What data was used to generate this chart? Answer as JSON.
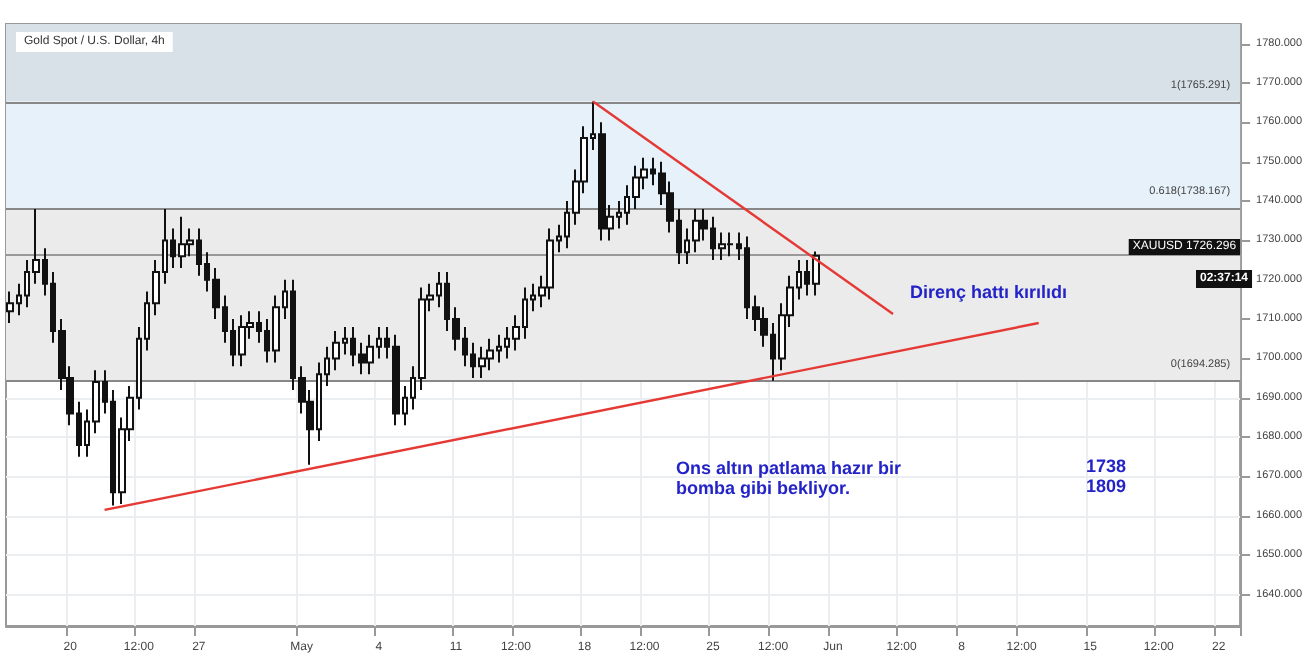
{
  "chart_data": {
    "type": "candlestick",
    "title": "Gold Spot / U.S. Dollar, 4h",
    "color": "#111111",
    "categories": [
      null,
      null,
      null,
      null,
      null,
      null,
      null,
      "20",
      null,
      null,
      null,
      null,
      null,
      null,
      null,
      "12:00",
      null,
      null,
      null,
      null,
      null,
      null,
      "27",
      null,
      null,
      null,
      null,
      null,
      null,
      null,
      null,
      null,
      null,
      null,
      "May",
      null,
      null,
      null,
      null,
      null,
      null,
      null,
      null,
      "4",
      null,
      null,
      null,
      null,
      null,
      null,
      null,
      null,
      "11",
      null,
      null,
      null,
      null,
      null,
      null,
      "12:00",
      null,
      null,
      null,
      null,
      null,
      null,
      null,
      "18",
      null,
      null,
      null,
      null,
      null,
      null,
      "12:00",
      null,
      null,
      null,
      null,
      null,
      null,
      null,
      "25",
      null,
      null,
      null,
      null,
      null,
      null,
      "12:00",
      null,
      null,
      null,
      null,
      null,
      null,
      "Jun",
      null,
      null,
      null,
      null,
      null,
      null,
      null,
      "12:00",
      null,
      null,
      null,
      null,
      null,
      null,
      "8",
      null,
      null,
      null,
      null,
      null,
      null,
      "12:00",
      null,
      null,
      null,
      null,
      null,
      null,
      null,
      "15",
      null,
      null,
      null,
      null,
      null,
      null,
      null,
      "12:00",
      null,
      null,
      null,
      null,
      null,
      null,
      "22",
      null,
      null
    ],
    "ohlc": [
      [
        1712,
        1717,
        1709,
        1714
      ],
      [
        1714,
        1719,
        1711,
        1716
      ],
      [
        1716,
        1725,
        1713,
        1722
      ],
      [
        1722,
        1738,
        1719,
        1725
      ],
      [
        1725,
        1728,
        1716,
        1719
      ],
      [
        1719,
        1722,
        1704,
        1707
      ],
      [
        1707,
        1710,
        1692,
        1695
      ],
      [
        1695,
        1698,
        1683,
        1686
      ],
      [
        1686,
        1689,
        1675,
        1678
      ],
      [
        1678,
        1687,
        1675,
        1684
      ],
      [
        1684,
        1697,
        1681,
        1694
      ],
      [
        1694,
        1697,
        1686,
        1689
      ],
      [
        1689,
        1692,
        1662.6,
        1666
      ],
      [
        1666,
        1685,
        1663,
        1682
      ],
      [
        1682,
        1693,
        1679,
        1690
      ],
      [
        1690,
        1708,
        1687,
        1705
      ],
      [
        1705,
        1717,
        1702,
        1714
      ],
      [
        1714,
        1725,
        1711,
        1722
      ],
      [
        1722,
        1738,
        1719,
        1730
      ],
      [
        1730,
        1733,
        1723,
        1726
      ],
      [
        1726,
        1736,
        1723,
        1729
      ],
      [
        1729,
        1733,
        1726,
        1730
      ],
      [
        1730,
        1733,
        1721,
        1724
      ],
      [
        1724,
        1727,
        1717,
        1720
      ],
      [
        1720,
        1723,
        1710,
        1713
      ],
      [
        1713,
        1716,
        1704,
        1707
      ],
      [
        1707,
        1710,
        1698,
        1701
      ],
      [
        1701,
        1711,
        1698,
        1708
      ],
      [
        1708,
        1712,
        1705,
        1709
      ],
      [
        1709,
        1712,
        1704,
        1707
      ],
      [
        1707,
        1710,
        1699,
        1702
      ],
      [
        1702,
        1716,
        1699,
        1713
      ],
      [
        1713,
        1720,
        1710,
        1717
      ],
      [
        1717,
        1720,
        1692,
        1695
      ],
      [
        1695,
        1698,
        1686,
        1689
      ],
      [
        1689,
        1692,
        1673,
        1682
      ],
      [
        1682,
        1699,
        1679,
        1696
      ],
      [
        1696,
        1703,
        1693,
        1700
      ],
      [
        1700,
        1707,
        1697,
        1704
      ],
      [
        1704,
        1708,
        1701,
        1705
      ],
      [
        1705,
        1708,
        1698,
        1701
      ],
      [
        1701,
        1704,
        1696,
        1699
      ],
      [
        1699,
        1706,
        1696,
        1703
      ],
      [
        1703,
        1708,
        1700,
        1705
      ],
      [
        1705,
        1708,
        1700,
        1703
      ],
      [
        1703,
        1706,
        1683,
        1686
      ],
      [
        1686,
        1693,
        1683,
        1690
      ],
      [
        1690,
        1698,
        1687,
        1695
      ],
      [
        1695,
        1718,
        1692,
        1715
      ],
      [
        1715,
        1719,
        1712,
        1716
      ],
      [
        1716,
        1722,
        1713,
        1719
      ],
      [
        1719,
        1722,
        1707,
        1710
      ],
      [
        1710,
        1713,
        1702,
        1705
      ],
      [
        1705,
        1708,
        1698,
        1701
      ],
      [
        1701,
        1704,
        1695,
        1698
      ],
      [
        1698,
        1703,
        1695,
        1700
      ],
      [
        1700,
        1705,
        1697,
        1702
      ],
      [
        1702,
        1706,
        1699,
        1703
      ],
      [
        1703,
        1708,
        1700,
        1705
      ],
      [
        1705,
        1711,
        1702,
        1708
      ],
      [
        1708,
        1718,
        1705,
        1715
      ],
      [
        1715,
        1719,
        1712,
        1716
      ],
      [
        1716,
        1721,
        1713,
        1718
      ],
      [
        1718,
        1733,
        1715,
        1730
      ],
      [
        1730,
        1734,
        1727,
        1731
      ],
      [
        1731,
        1740,
        1728,
        1737
      ],
      [
        1737,
        1748,
        1734,
        1745
      ],
      [
        1745,
        1759,
        1742,
        1756
      ],
      [
        1756,
        1765.3,
        1753,
        1757
      ],
      [
        1757,
        1760,
        1730,
        1733
      ],
      [
        1733,
        1739,
        1730,
        1736
      ],
      [
        1736,
        1740,
        1733,
        1737
      ],
      [
        1737,
        1744,
        1734,
        1741
      ],
      [
        1741,
        1749,
        1738,
        1746
      ],
      [
        1746,
        1751,
        1743,
        1748
      ],
      [
        1748,
        1751,
        1744,
        1747
      ],
      [
        1747,
        1750,
        1739,
        1742
      ],
      [
        1742,
        1745,
        1732,
        1735
      ],
      [
        1735,
        1738,
        1724,
        1727
      ],
      [
        1727,
        1733,
        1724,
        1730
      ],
      [
        1730,
        1738,
        1727,
        1735
      ],
      [
        1735,
        1738,
        1730,
        1733
      ],
      [
        1733,
        1736,
        1725,
        1728
      ],
      [
        1728,
        1732,
        1725,
        1729
      ],
      [
        1729,
        1732,
        1726,
        1729
      ],
      [
        1729,
        1732,
        1725,
        1728
      ],
      [
        1728,
        1731,
        1710,
        1713
      ],
      [
        1713,
        1716,
        1707,
        1710
      ],
      [
        1710,
        1713,
        1703,
        1706
      ],
      [
        1706,
        1709,
        1694.3,
        1700
      ],
      [
        1700,
        1714,
        1697,
        1711
      ],
      [
        1711,
        1721,
        1708,
        1718
      ],
      [
        1718,
        1725,
        1715,
        1722
      ],
      [
        1722,
        1725,
        1716,
        1719
      ],
      [
        1719,
        1727.2,
        1716,
        1726.1
      ],
      null,
      null,
      null,
      null,
      null,
      null,
      null,
      null,
      null,
      null,
      null,
      null,
      null,
      null,
      null,
      null,
      null,
      null,
      null,
      null,
      null,
      null,
      null,
      null,
      null,
      null,
      null,
      null,
      null,
      null,
      null,
      null,
      null,
      null,
      null,
      null,
      null,
      null,
      null,
      null,
      null,
      null,
      null,
      null,
      null,
      null,
      null,
      null,
      null
    ],
    "series": [
      {
        "type": "line",
        "color": "#e53935",
        "values": [
          null,
          null,
          null,
          null,
          null,
          null,
          null,
          null,
          null,
          null,
          null,
          1661.5,
          null,
          null,
          null,
          null,
          null,
          null,
          null,
          null,
          null,
          null,
          null,
          null,
          null,
          null,
          null,
          null,
          null,
          null,
          null,
          null,
          null,
          null,
          null,
          null,
          null,
          null,
          null,
          null,
          null,
          null,
          null,
          null,
          null,
          null,
          null,
          null,
          null,
          null,
          null,
          null,
          null,
          null,
          null,
          null,
          null,
          null,
          null,
          null,
          null,
          null,
          null,
          null,
          null,
          null,
          null,
          null,
          null,
          null,
          null,
          null,
          null,
          null,
          null,
          null,
          null,
          null,
          null,
          null,
          null,
          null,
          null,
          null,
          null,
          null,
          null,
          null,
          null,
          null,
          null,
          null,
          null,
          null,
          null,
          null,
          null,
          null,
          null,
          null,
          null,
          null,
          null,
          null,
          null,
          null,
          null,
          null,
          null,
          null,
          null,
          null,
          null,
          null,
          null,
          null,
          null,
          null,
          null,
          null,
          1709,
          null,
          null,
          null,
          null,
          null,
          null,
          null,
          null,
          null,
          null,
          null,
          null,
          null,
          null,
          null,
          null,
          null,
          null,
          null,
          null,
          null,
          null,
          null
        ]
      },
      {
        "type": "line",
        "color": "#e53935",
        "values": [
          null,
          null,
          null,
          null,
          null,
          null,
          null,
          null,
          null,
          null,
          null,
          null,
          null,
          null,
          null,
          null,
          null,
          null,
          null,
          null,
          null,
          null,
          null,
          null,
          null,
          null,
          null,
          null,
          null,
          null,
          null,
          null,
          null,
          null,
          null,
          null,
          null,
          null,
          null,
          null,
          null,
          null,
          null,
          null,
          null,
          null,
          null,
          null,
          null,
          null,
          null,
          null,
          null,
          null,
          null,
          null,
          null,
          null,
          null,
          null,
          null,
          null,
          null,
          null,
          null,
          null,
          null,
          null,
          1765.3,
          null,
          null,
          null,
          null,
          null,
          null,
          null,
          null,
          null,
          null,
          null,
          null,
          null,
          null,
          null,
          null,
          null,
          null,
          null,
          null,
          null,
          null,
          null,
          null,
          null,
          null,
          null,
          null,
          null,
          null,
          null,
          null,
          null,
          null,
          1711.3,
          null,
          null,
          null,
          null,
          null,
          null,
          null,
          null,
          null,
          null,
          null,
          null,
          null,
          null,
          null,
          null,
          null,
          null,
          null,
          null,
          null,
          null,
          null,
          null,
          null,
          null,
          null,
          null,
          null,
          null,
          null,
          null,
          null,
          null,
          null,
          null,
          null,
          null,
          null,
          null
        ]
      }
    ],
    "ylim": [
      1632,
      1785
    ],
    "yticks": [
      {
        "value": 1640,
        "label": "1640.000"
      },
      {
        "value": 1650,
        "label": "1650.000"
      },
      {
        "value": 1660,
        "label": "1660.000"
      },
      {
        "value": 1670,
        "label": "1670.000"
      },
      {
        "value": 1680,
        "label": "1680.000"
      },
      {
        "value": 1690,
        "label": "1690.000"
      },
      {
        "value": 1700,
        "label": "1700.000"
      },
      {
        "value": 1710,
        "label": "1710.000"
      },
      {
        "value": 1720,
        "label": "1720.000"
      },
      {
        "value": 1730,
        "label": "1730.000"
      },
      {
        "value": 1740,
        "label": "1740.000"
      },
      {
        "value": 1750,
        "label": "1750.000"
      },
      {
        "value": 1760,
        "label": "1760.000"
      },
      {
        "value": 1770,
        "label": "1770.000"
      },
      {
        "value": 1780,
        "label": "1780.000"
      }
    ],
    "bands": [
      {
        "axis": "y",
        "from": 1765.291,
        "to": 1785,
        "color": "#d8e1e7"
      },
      {
        "axis": "y",
        "from": 1738.167,
        "to": 1765.291,
        "color": "#e6f1fa"
      },
      {
        "axis": "y",
        "from": 1694.285,
        "to": 1738.167,
        "color": "#ebebeb"
      }
    ],
    "ref_lines": [
      {
        "axis": "y",
        "value": 1765.291,
        "label": "1(1765.291)",
        "color": "#888888"
      },
      {
        "axis": "y",
        "value": 1738.167,
        "label": "0.618(1738.167)",
        "color": "#888888"
      },
      {
        "axis": "y",
        "value": 1694.285,
        "label": "0(1694.285)",
        "color": "#888888"
      },
      {
        "axis": "y",
        "value": 1726.296,
        "label": "XAUUSD 1726.296",
        "color": "#999999"
      }
    ],
    "annotations": [
      "Direnç hattı kırılıdı",
      "Ons altın patlama hazır bir\nbomba gibi bekliyor.",
      "1738\n1809",
      "02:37:14"
    ],
    "grid": true,
    "marker": "none",
    "line_style": "solid"
  }
}
